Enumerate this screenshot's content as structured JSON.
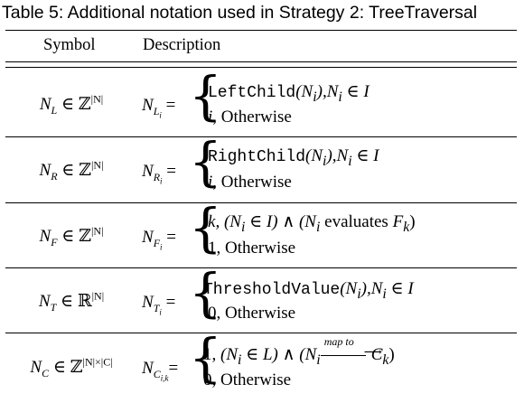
{
  "caption": "Table 5: Additional notation used in Strategy 2: TreeTraversal",
  "headers": {
    "symbol": "Symbol",
    "description": "Description"
  },
  "rows": [
    {
      "sym": {
        "base": "N",
        "sub": "L",
        "rel": " ∈ ",
        "set": "ℤ",
        "sup": "|N|"
      },
      "lhs": {
        "base": "N",
        "sub": "L",
        "subsub": "i",
        "eq": " ="
      },
      "case1": {
        "func": "LeftChild",
        "args": "(N",
        "args_sub": "i",
        "cond": "),N",
        "cond_sub": "i",
        "tail": " ∈ I"
      },
      "case2": {
        "val": "i",
        "text": ", Otherwise"
      }
    },
    {
      "sym": {
        "base": "N",
        "sub": "R",
        "rel": " ∈ ",
        "set": "ℤ",
        "sup": "|N|"
      },
      "lhs": {
        "base": "N",
        "sub": "R",
        "subsub": "i",
        "eq": " ="
      },
      "case1": {
        "func": "RightChild",
        "args": "(N",
        "args_sub": "i",
        "cond": "),N",
        "cond_sub": "i",
        "tail": " ∈ I"
      },
      "case2": {
        "val": "i",
        "text": ", Otherwise"
      }
    },
    {
      "sym": {
        "base": "N",
        "sub": "F",
        "rel": " ∈ ",
        "set": "ℤ",
        "sup": "|N|"
      },
      "lhs": {
        "base": "N",
        "sub": "F",
        "subsub": "i",
        "eq": " ="
      },
      "case1": {
        "k": "k",
        "p1": ", (N",
        "p1_sub": "i",
        "p2": " ∈ I) ∧ (N",
        "p2_sub": "i",
        "p3": " evaluates ",
        "f": "F",
        "f_sub": "k",
        "p4": ")"
      },
      "case2": {
        "val": "1",
        "text": ", Otherwise"
      }
    },
    {
      "sym": {
        "base": "N",
        "sub": "T",
        "rel": " ∈ ",
        "set": "ℝ",
        "sup": "|N|"
      },
      "lhs": {
        "base": "N",
        "sub": "T",
        "subsub": "i",
        "eq": " ="
      },
      "case1": {
        "func": "ThresholdValue",
        "args": "(N",
        "args_sub": "i",
        "cond": "),N",
        "cond_sub": "i",
        "tail": " ∈ I"
      },
      "case2": {
        "val": "0",
        "text": ", Otherwise"
      }
    },
    {
      "sym": {
        "base": "N",
        "sub": "C",
        "rel": " ∈ ",
        "set": "ℤ",
        "sup": "|N|×|C|"
      },
      "lhs": {
        "base": "N",
        "sub": "C",
        "subsub": "i,k",
        "eq": "="
      },
      "case1": {
        "one": "1",
        "p1": ", (N",
        "p1_sub": "i",
        "p2": " ∈ L) ∧ (N",
        "p2_sub": "i",
        "arrow_label": "map to",
        "c": "C",
        "c_sub": "k",
        "p3": ")"
      },
      "case2": {
        "val": "0",
        "text": ", Otherwise"
      }
    }
  ]
}
